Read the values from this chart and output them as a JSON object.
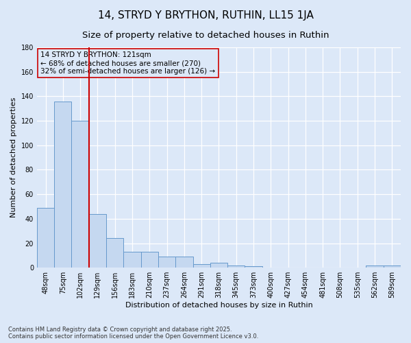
{
  "title": "14, STRYD Y BRYTHON, RUTHIN, LL15 1JA",
  "subtitle": "Size of property relative to detached houses in Ruthin",
  "xlabel": "Distribution of detached houses by size in Ruthin",
  "ylabel": "Number of detached properties",
  "categories": [
    "48sqm",
    "75sqm",
    "102sqm",
    "129sqm",
    "156sqm",
    "183sqm",
    "210sqm",
    "237sqm",
    "264sqm",
    "291sqm",
    "318sqm",
    "345sqm",
    "373sqm",
    "400sqm",
    "427sqm",
    "454sqm",
    "481sqm",
    "508sqm",
    "535sqm",
    "562sqm",
    "589sqm"
  ],
  "values": [
    49,
    136,
    120,
    44,
    24,
    13,
    13,
    9,
    9,
    3,
    4,
    2,
    1,
    0,
    0,
    0,
    0,
    0,
    0,
    2,
    2
  ],
  "bar_color": "#c5d8f0",
  "bar_edge_color": "#6699cc",
  "ylim": [
    0,
    180
  ],
  "yticks": [
    0,
    20,
    40,
    60,
    80,
    100,
    120,
    140,
    160,
    180
  ],
  "vline_x": 2.5,
  "vline_color": "#cc0000",
  "annotation_text": "14 STRYD Y BRYTHON: 121sqm\n← 68% of detached houses are smaller (270)\n32% of semi-detached houses are larger (126) →",
  "bg_color": "#dce8f8",
  "grid_color": "#ffffff",
  "footnote": "Contains HM Land Registry data © Crown copyright and database right 2025.\nContains public sector information licensed under the Open Government Licence v3.0.",
  "title_fontsize": 11,
  "subtitle_fontsize": 9.5,
  "label_fontsize": 8,
  "tick_fontsize": 7,
  "annot_fontsize": 7.5
}
